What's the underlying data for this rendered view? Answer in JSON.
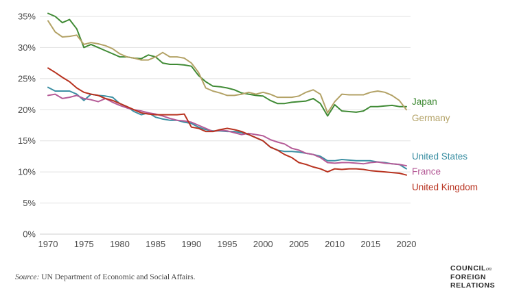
{
  "chart_data": {
    "type": "line",
    "x_ticks": [
      1970,
      1975,
      1980,
      1985,
      1990,
      1995,
      2000,
      2005,
      2010,
      2015,
      2020
    ],
    "y_ticks": [
      "0%",
      "5%",
      "10%",
      "15%",
      "20%",
      "25%",
      "30%",
      "35%"
    ],
    "xlim": [
      1970,
      2020
    ],
    "ylim": [
      0,
      35
    ],
    "grid": "horizontal",
    "series": [
      {
        "name": "Japan",
        "color": "#3f8a34",
        "x": [
          1970,
          1971,
          1972,
          1973,
          1974,
          1975,
          1976,
          1977,
          1978,
          1979,
          1980,
          1981,
          1982,
          1983,
          1984,
          1985,
          1986,
          1987,
          1988,
          1989,
          1990,
          1991,
          1992,
          1993,
          1994,
          1995,
          1996,
          1997,
          1998,
          1999,
          2000,
          2001,
          2002,
          2003,
          2004,
          2005,
          2006,
          2007,
          2008,
          2009,
          2010,
          2011,
          2012,
          2013,
          2014,
          2015,
          2016,
          2017,
          2018,
          2019,
          2020
        ],
        "y": [
          35.5,
          35.0,
          34.0,
          34.5,
          33.0,
          30.0,
          30.5,
          30.0,
          29.5,
          29.0,
          28.5,
          28.5,
          28.3,
          28.2,
          28.8,
          28.5,
          27.5,
          27.3,
          27.3,
          27.2,
          27.0,
          25.5,
          24.5,
          23.8,
          23.7,
          23.5,
          23.2,
          22.7,
          22.5,
          22.3,
          22.2,
          21.5,
          21.0,
          21.0,
          21.2,
          21.3,
          21.4,
          21.8,
          21.0,
          19.0,
          20.8,
          19.8,
          19.7,
          19.6,
          19.8,
          20.5,
          20.5,
          20.6,
          20.7,
          20.5,
          20.5
        ]
      },
      {
        "name": "Germany",
        "color": "#b3a266",
        "x": [
          1970,
          1971,
          1972,
          1973,
          1974,
          1975,
          1976,
          1977,
          1978,
          1979,
          1980,
          1981,
          1982,
          1983,
          1984,
          1985,
          1986,
          1987,
          1988,
          1989,
          1990,
          1991,
          1992,
          1993,
          1994,
          1995,
          1996,
          1997,
          1998,
          1999,
          2000,
          2001,
          2002,
          2003,
          2004,
          2005,
          2006,
          2007,
          2008,
          2009,
          2010,
          2011,
          2012,
          2013,
          2014,
          2015,
          2016,
          2017,
          2018,
          2019,
          2020
        ],
        "y": [
          34.3,
          32.5,
          31.7,
          31.8,
          32.0,
          30.5,
          30.8,
          30.6,
          30.3,
          29.8,
          29.0,
          28.5,
          28.3,
          28.0,
          28.0,
          28.5,
          29.2,
          28.5,
          28.5,
          28.3,
          27.5,
          26.0,
          23.5,
          23.0,
          22.7,
          22.3,
          22.3,
          22.5,
          22.8,
          22.5,
          22.8,
          22.5,
          22.0,
          22.0,
          22.0,
          22.2,
          22.8,
          23.2,
          22.5,
          19.5,
          21.3,
          22.5,
          22.4,
          22.4,
          22.4,
          22.8,
          23.0,
          22.8,
          22.3,
          21.5,
          20.0
        ]
      },
      {
        "name": "United States",
        "color": "#3b8fa3",
        "x": [
          1970,
          1971,
          1972,
          1973,
          1974,
          1975,
          1976,
          1977,
          1978,
          1979,
          1980,
          1981,
          1982,
          1983,
          1984,
          1985,
          1986,
          1987,
          1988,
          1989,
          1990,
          1991,
          1992,
          1993,
          1994,
          1995,
          1996,
          1997,
          1998,
          1999,
          2000,
          2001,
          2002,
          2003,
          2004,
          2005,
          2006,
          2007,
          2008,
          2009,
          2010,
          2011,
          2012,
          2013,
          2014,
          2015,
          2016,
          2017,
          2018,
          2019,
          2020
        ],
        "y": [
          23.6,
          23.0,
          23.0,
          23.0,
          22.5,
          21.5,
          22.5,
          22.3,
          22.2,
          22.0,
          21.0,
          20.5,
          19.7,
          19.2,
          19.5,
          18.8,
          18.5,
          18.3,
          18.3,
          18.0,
          17.8,
          17.2,
          16.8,
          16.6,
          16.6,
          16.5,
          16.5,
          16.3,
          16.0,
          15.5,
          15.0,
          14.0,
          13.5,
          13.3,
          13.3,
          13.2,
          13.0,
          12.8,
          12.5,
          11.8,
          11.8,
          12.0,
          11.9,
          11.8,
          11.8,
          11.8,
          11.6,
          11.5,
          11.3,
          11.2,
          10.5
        ]
      },
      {
        "name": "France",
        "color": "#b55b97",
        "x": [
          1970,
          1971,
          1972,
          1973,
          1974,
          1975,
          1976,
          1977,
          1978,
          1979,
          1980,
          1981,
          1982,
          1983,
          1984,
          1985,
          1986,
          1987,
          1988,
          1989,
          1990,
          1991,
          1992,
          1993,
          1994,
          1995,
          1996,
          1997,
          1998,
          1999,
          2000,
          2001,
          2002,
          2003,
          2004,
          2005,
          2006,
          2007,
          2008,
          2009,
          2010,
          2011,
          2012,
          2013,
          2014,
          2015,
          2016,
          2017,
          2018,
          2019,
          2020
        ],
        "y": [
          22.3,
          22.5,
          21.8,
          22.0,
          22.3,
          21.8,
          21.6,
          21.3,
          21.8,
          21.2,
          20.7,
          20.3,
          20.0,
          19.8,
          19.5,
          19.3,
          19.0,
          18.6,
          18.3,
          18.2,
          18.0,
          17.5,
          17.0,
          16.5,
          16.7,
          16.6,
          16.3,
          16.0,
          16.2,
          16.0,
          15.8,
          15.2,
          14.8,
          14.5,
          13.8,
          13.5,
          13.0,
          12.8,
          12.3,
          11.5,
          11.4,
          11.5,
          11.5,
          11.4,
          11.3,
          11.5,
          11.6,
          11.4,
          11.3,
          11.2,
          11.0
        ]
      },
      {
        "name": "United Kingdom",
        "color": "#b8321f",
        "x": [
          1970,
          1971,
          1972,
          1973,
          1974,
          1975,
          1976,
          1977,
          1978,
          1979,
          1980,
          1981,
          1982,
          1983,
          1984,
          1985,
          1986,
          1987,
          1988,
          1989,
          1990,
          1991,
          1992,
          1993,
          1994,
          1995,
          1996,
          1997,
          1998,
          1999,
          2000,
          2001,
          2002,
          2003,
          2004,
          2005,
          2006,
          2007,
          2008,
          2009,
          2010,
          2011,
          2012,
          2013,
          2014,
          2015,
          2016,
          2017,
          2018,
          2019,
          2020
        ],
        "y": [
          26.7,
          26.0,
          25.2,
          24.5,
          23.5,
          22.8,
          22.5,
          22.3,
          21.8,
          21.5,
          21.0,
          20.5,
          20.0,
          19.5,
          19.3,
          19.2,
          19.2,
          19.2,
          19.2,
          19.3,
          17.2,
          17.0,
          16.5,
          16.5,
          16.8,
          17.0,
          16.8,
          16.5,
          16.0,
          15.5,
          15.0,
          14.0,
          13.5,
          12.8,
          12.3,
          11.5,
          11.2,
          10.8,
          10.5,
          10.0,
          10.5,
          10.4,
          10.5,
          10.5,
          10.4,
          10.2,
          10.1,
          10.0,
          9.9,
          9.8,
          9.5
        ]
      }
    ],
    "series_label_order": [
      "Japan",
      "Germany",
      "United States",
      "France",
      "United Kingdom"
    ]
  },
  "source": {
    "prefix": "Source:",
    "text": "UN Department of Economic and Social Affairs."
  },
  "logo": {
    "line1": "COUNCIL",
    "line1_small": "on",
    "line2": "FOREIGN",
    "line3": "RELATIONS"
  }
}
